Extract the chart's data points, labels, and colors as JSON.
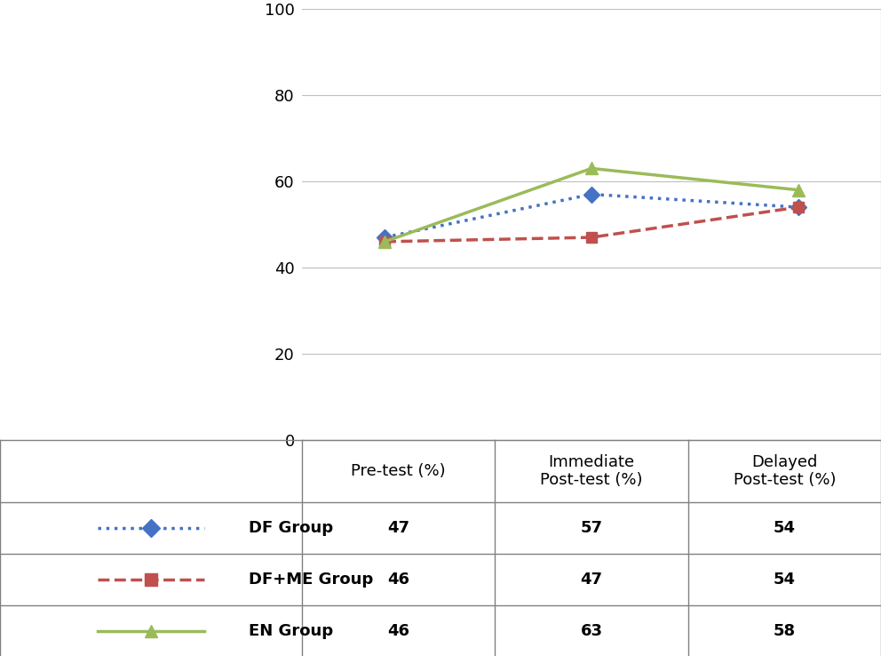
{
  "x_positions": [
    0,
    1,
    2
  ],
  "series": [
    {
      "name": "DF Group",
      "values": [
        47,
        57,
        54
      ],
      "color": "#4472C4",
      "linestyle": "dotted",
      "marker": "D",
      "markersize": 9,
      "linewidth": 2.5
    },
    {
      "name": "DF+ME Group",
      "values": [
        46,
        47,
        54
      ],
      "color": "#C0504D",
      "linestyle": "dashed",
      "marker": "s",
      "markersize": 9,
      "linewidth": 2.5
    },
    {
      "name": "EN Group",
      "values": [
        46,
        63,
        58
      ],
      "color": "#9BBB59",
      "linestyle": "solid",
      "marker": "^",
      "markersize": 10,
      "linewidth": 2.5
    }
  ],
  "ylim": [
    0,
    100
  ],
  "yticks": [
    0,
    20,
    40,
    60,
    80,
    100
  ],
  "col_headers": [
    "Pre-test (%)",
    "Immediate\nPost-test (%)",
    "Delayed\nPost-test (%)"
  ],
  "table_rows": [
    [
      "47",
      "57",
      "54"
    ],
    [
      "46",
      "47",
      "54"
    ],
    [
      "46",
      "63",
      "58"
    ]
  ],
  "row_labels": [
    "DF Group",
    "DF+ME Group",
    "EN Group"
  ],
  "bg_color": "#ffffff",
  "plot_bg": "#ffffff",
  "grid_color": "#bfbfbf",
  "border_color": "#808080",
  "font_size_ticks": 13,
  "font_size_table": 13
}
